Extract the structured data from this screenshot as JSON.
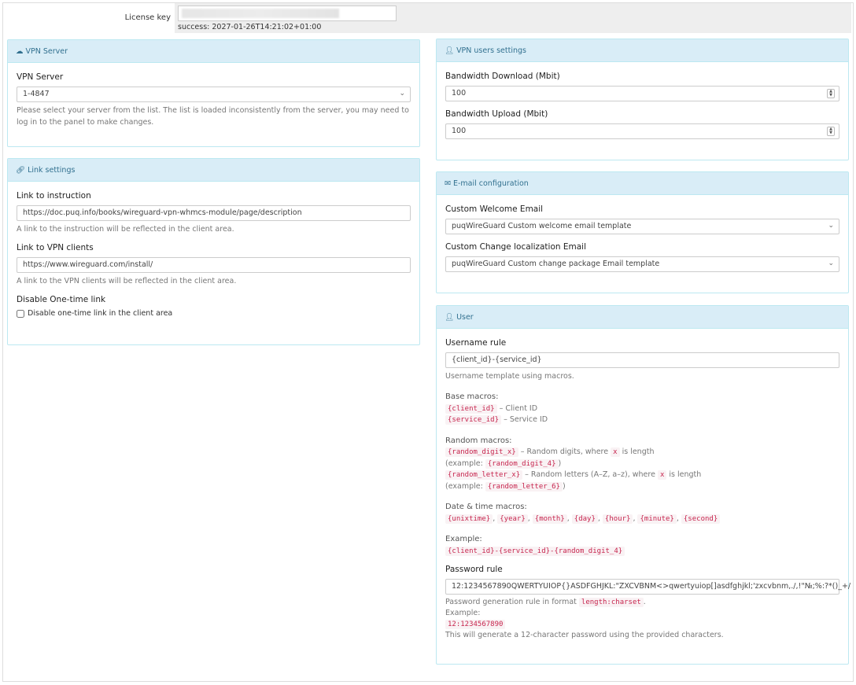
{
  "license": {
    "label": "License key",
    "status": "success: 2027-01-26T14:21:02+01:00"
  },
  "vpn_server": {
    "title": "VPN Server",
    "label": "VPN Server",
    "value": "1-4847",
    "help": "Please select your server from the list. The list is loaded inconsistently from the server, you may need to log in to the panel to make changes."
  },
  "link_settings": {
    "title": "Link settings",
    "instruction_label": "Link to instruction",
    "instruction_value": "https://doc.puq.info/books/wireguard-vpn-whmcs-module/page/description",
    "instruction_help": "A link to the instruction will be reflected in the client area.",
    "clients_label": "Link to VPN clients",
    "clients_value": "https://www.wireguard.com/install/",
    "clients_help": "A link to the VPN clients will be reflected in the client area.",
    "onetime_label": "Disable One-time link",
    "onetime_checkbox": "Disable one-time link in the client area",
    "onetime_checked": false
  },
  "vpn_users": {
    "title": "VPN users settings",
    "download_label": "Bandwidth Download (Mbit)",
    "download_value": "100",
    "upload_label": "Bandwidth Upload (Mbit)",
    "upload_value": "100"
  },
  "email": {
    "title": "E-mail configuration",
    "welcome_label": "Custom Welcome Email",
    "welcome_value": "puqWireGuard Custom welcome email template",
    "change_label": "Custom Change localization Email",
    "change_value": "puqWireGuard Custom change package Email template"
  },
  "user": {
    "title": "User",
    "username_label": "Username rule",
    "username_value": "{client_id}-{service_id}",
    "username_help": "Username template using macros.",
    "base_title": "Base macros:",
    "client_id": "{client_id}",
    "client_id_desc": "– Client ID",
    "service_id": "{service_id}",
    "service_id_desc": "– Service ID",
    "random_title": "Random macros:",
    "rd": "{random_digit_x}",
    "rd_desc": "– Random digits, where",
    "x": "x",
    "is_length": "is length",
    "example_open": "(example:",
    "rd4": "{random_digit_4}",
    "close": ")",
    "rl": "{random_letter_x}",
    "rl_desc": "– Random letters (A–Z, a–z), where",
    "rl6": "{random_letter_6}",
    "dt_title": "Date & time macros:",
    "dt": [
      "{unixtime}",
      "{year}",
      "{month}",
      "{day}",
      "{hour}",
      "{minute}",
      "{second}"
    ],
    "example_title": "Example:",
    "example": "{client_id}-{service_id}-{random_digit_4}",
    "password_label": "Password rule",
    "password_value": "12:1234567890QWERTYUIOP{}ASDFGHJKL:\"ZXCVBNM<>qwertyuiop[]asdfghjkl;'zxcvbnm,./,!\"№;%:?*()_+/",
    "pw_help1": "Password generation rule in format",
    "pw_code": "length:charset",
    "pw_example": "Example:",
    "pw_example_code": "12:1234567890",
    "pw_help2": "This will generate a 12-character password using the provided characters."
  }
}
